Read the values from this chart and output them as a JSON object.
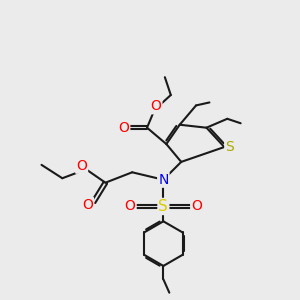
{
  "bg_color": "#ebebeb",
  "bond_color": "#000000",
  "bond_width": 1.5,
  "font_size": 9,
  "fig_size": [
    3.0,
    3.0
  ],
  "dpi": 100,
  "colors": {
    "O": "#ff0000",
    "N": "#0000ff",
    "S_thio": "#aaaa00",
    "S_sulf": "#ddcc00",
    "C": "#1a1a1a"
  }
}
